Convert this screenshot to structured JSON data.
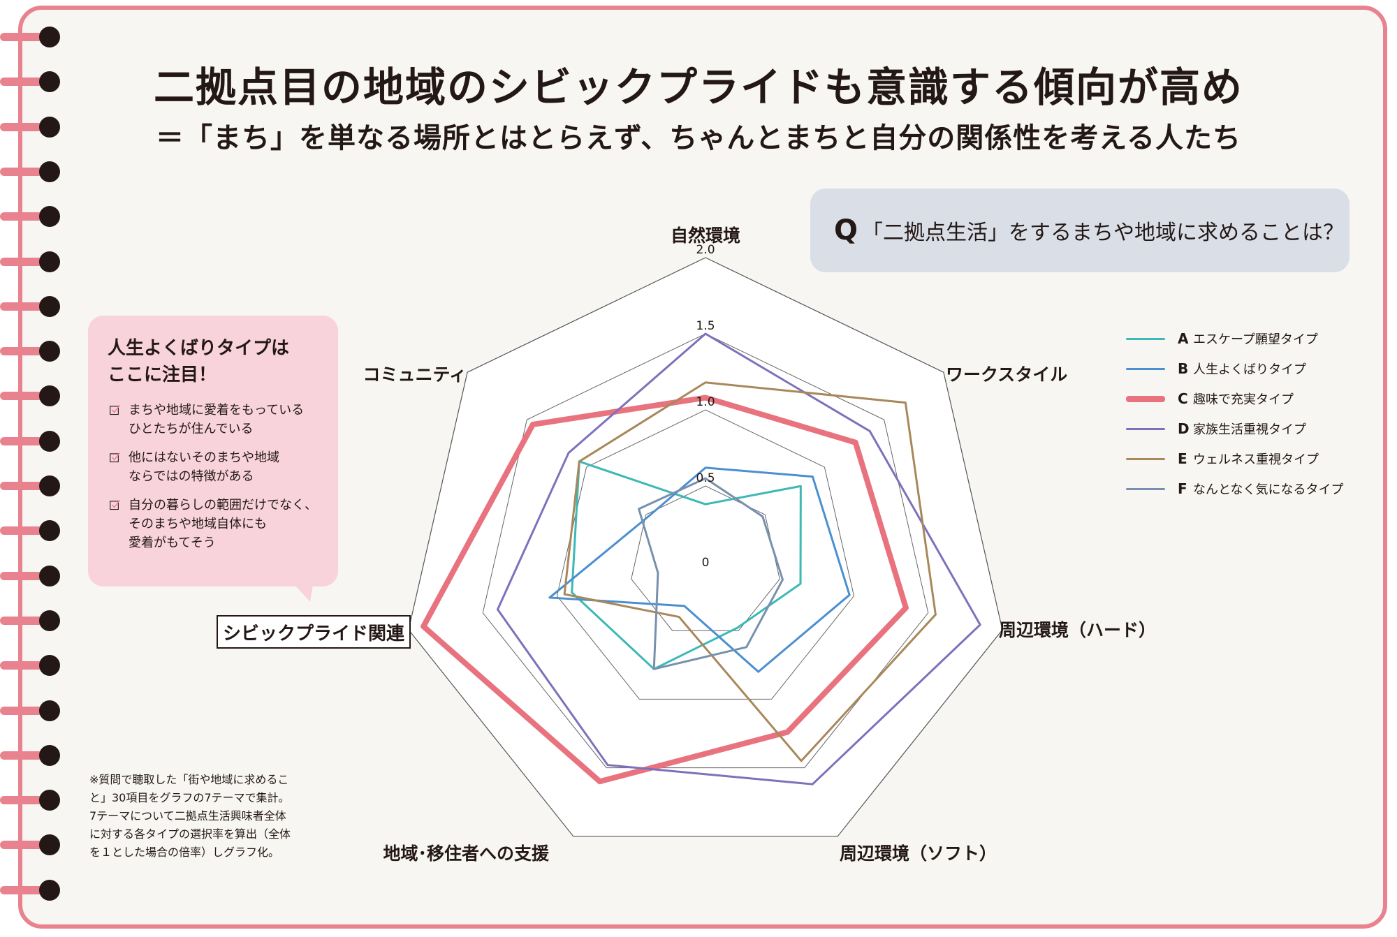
{
  "title": "二拠点目の地域のシビックプライドも意識する傾向が高め",
  "subtitle": "＝「まち」を単なる場所とはとらえず、ちゃんとまちと自分の関係性を考える人たち",
  "question": {
    "mark": "Q",
    "text": "「二拠点生活」をするまちや地域に求めることは？"
  },
  "callout": {
    "heading": "人生よくばりタイプは\nここに注目！",
    "items": [
      "まちや地域に愛着をもっている\nひとたちが住んでいる",
      "他にはないそのまちや地域\nならではの特徴がある",
      "自分の暮らしの範囲だけでなく、\nそのまちや地域自体にも\n愛着がもてそう"
    ]
  },
  "civic_label": "シビックプライド関連",
  "footnote": "※質問で聴取した「街や地域に求めるこ\nと」30項目をグラフの7テーマで集計。\n7テーマについて二拠点生活興味者全体\nに対する各タイプの選択率を算出（全体\nを１とした場合の倍率）しグラフ化。",
  "colors": {
    "accent_pink": "#e9828f",
    "callout_bg": "#f8d3dc",
    "question_bg": "#d9dee7"
  },
  "chart_data": {
    "type": "radar",
    "axes": [
      "自然環境",
      "ワークスタイル",
      "周辺環境（ハード）",
      "周辺環境（ソフト）",
      "地域･移住者への支援",
      "シビックプライド関連",
      "コミュニティ"
    ],
    "ticks": [
      "0",
      "0.5",
      "1.0",
      "1.5",
      "2.0"
    ],
    "tick_values": [
      0,
      0.5,
      1.0,
      1.5,
      2.0
    ],
    "range": [
      0,
      2.0
    ],
    "grid": true,
    "legend_position": "right",
    "series": [
      {
        "letter": "A",
        "name": "エスケープ願望タイプ",
        "color": "#3cb8b6",
        "width": 3,
        "values": [
          0.38,
          0.8,
          0.64,
          0.48,
          0.78,
          0.9,
          1.06
        ]
      },
      {
        "letter": "B",
        "name": "人生よくばりタイプ",
        "color": "#4a8fd0",
        "width": 3,
        "values": [
          0.62,
          0.9,
          0.97,
          0.8,
          0.32,
          1.05,
          0.48
        ]
      },
      {
        "letter": "C",
        "name": "趣味で充実タイプ",
        "color": "#e8737f",
        "width": 8,
        "values": [
          1.08,
          1.26,
          1.35,
          1.24,
          1.6,
          1.9,
          1.45
        ]
      },
      {
        "letter": "D",
        "name": "家族生活重視タイプ",
        "color": "#7f70bb",
        "width": 3,
        "values": [
          1.5,
          1.38,
          1.85,
          1.62,
          1.48,
          1.4,
          1.15
        ]
      },
      {
        "letter": "E",
        "name": "ウェルネス重視タイプ",
        "color": "#a8885a",
        "width": 3,
        "values": [
          1.18,
          1.68,
          1.55,
          1.45,
          0.4,
          0.95,
          1.06
        ]
      },
      {
        "letter": "F",
        "name": "なんとなく気になるタイプ",
        "color": "#7890ad",
        "width": 3,
        "values": [
          0.55,
          0.48,
          0.52,
          0.62,
          0.78,
          0.32,
          0.56
        ]
      }
    ]
  }
}
